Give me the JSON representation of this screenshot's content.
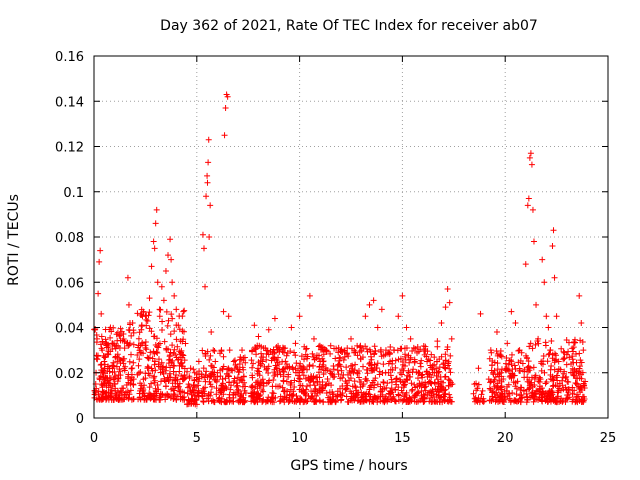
{
  "chart_data": {
    "type": "scatter",
    "title": "Day 362 of 2021, Rate Of TEC Index for receiver ab07",
    "xlabel": "GPS time / hours",
    "ylabel": "ROTI / TECUs",
    "xlim": [
      0,
      25
    ],
    "ylim": [
      0,
      0.16
    ],
    "xticks": [
      0,
      5,
      10,
      15,
      20,
      25
    ],
    "xtick_labels": [
      "0",
      "5",
      "10",
      "15",
      "20",
      "25"
    ],
    "yticks": [
      0,
      0.02,
      0.04,
      0.06,
      0.08,
      0.1,
      0.12,
      0.14,
      0.16
    ],
    "ytick_labels": [
      "0",
      "0.02",
      "0.04",
      "0.06",
      "0.08",
      "0.1",
      "0.12",
      "0.14",
      "0.16"
    ],
    "grid": true,
    "marker": "+",
    "color": "#ff0000",
    "series": [
      {
        "name": "ROTI",
        "points": [
          [
            0.05,
            0.012
          ],
          [
            0.1,
            0.02
          ],
          [
            0.15,
            0.035
          ],
          [
            0.2,
            0.055
          ],
          [
            0.25,
            0.069
          ],
          [
            0.3,
            0.074
          ],
          [
            0.35,
            0.046
          ],
          [
            0.4,
            0.03
          ],
          [
            0.45,
            0.018
          ],
          [
            0.5,
            0.025
          ],
          [
            0.6,
            0.033
          ],
          [
            0.7,
            0.028
          ],
          [
            0.8,
            0.04
          ],
          [
            0.9,
            0.022
          ],
          [
            1.0,
            0.015
          ],
          [
            1.1,
            0.037
          ],
          [
            1.2,
            0.019
          ],
          [
            1.3,
            0.012
          ],
          [
            1.5,
            0.021
          ],
          [
            1.6,
            0.033
          ],
          [
            1.65,
            0.062
          ],
          [
            1.7,
            0.05
          ],
          [
            1.75,
            0.042
          ],
          [
            1.8,
            0.028
          ],
          [
            1.9,
            0.015
          ],
          [
            2.2,
            0.026
          ],
          [
            2.3,
            0.039
          ],
          [
            2.4,
            0.047
          ],
          [
            2.5,
            0.031
          ],
          [
            2.6,
            0.022
          ],
          [
            2.7,
            0.053
          ],
          [
            2.8,
            0.067
          ],
          [
            2.9,
            0.078
          ],
          [
            2.95,
            0.075
          ],
          [
            3.0,
            0.086
          ],
          [
            3.05,
            0.092
          ],
          [
            3.1,
            0.06
          ],
          [
            3.2,
            0.045
          ],
          [
            3.3,
            0.058
          ],
          [
            3.4,
            0.052
          ],
          [
            3.5,
            0.065
          ],
          [
            3.6,
            0.072
          ],
          [
            3.7,
            0.079
          ],
          [
            3.75,
            0.07
          ],
          [
            3.8,
            0.06
          ],
          [
            3.9,
            0.054
          ],
          [
            4.0,
            0.048
          ],
          [
            4.1,
            0.041
          ],
          [
            4.2,
            0.034
          ],
          [
            4.3,
            0.028
          ],
          [
            4.4,
            0.019
          ],
          [
            4.6,
            0.015
          ],
          [
            4.7,
            0.022
          ],
          [
            4.8,
            0.012
          ],
          [
            4.9,
            0.02
          ],
          [
            5.0,
            0.017
          ],
          [
            5.1,
            0.025
          ],
          [
            5.3,
            0.081
          ],
          [
            5.35,
            0.075
          ],
          [
            5.4,
            0.058
          ],
          [
            5.45,
            0.098
          ],
          [
            5.5,
            0.107
          ],
          [
            5.52,
            0.104
          ],
          [
            5.55,
            0.113
          ],
          [
            5.58,
            0.123
          ],
          [
            5.6,
            0.08
          ],
          [
            5.65,
            0.094
          ],
          [
            5.7,
            0.038
          ],
          [
            5.8,
            0.03
          ],
          [
            5.9,
            0.025
          ],
          [
            6.0,
            0.02
          ],
          [
            6.2,
            0.03
          ],
          [
            6.3,
            0.047
          ],
          [
            6.35,
            0.125
          ],
          [
            6.4,
            0.137
          ],
          [
            6.45,
            0.143
          ],
          [
            6.5,
            0.142
          ],
          [
            6.55,
            0.045
          ],
          [
            6.6,
            0.03
          ],
          [
            6.8,
            0.025
          ],
          [
            7.0,
            0.018
          ],
          [
            7.2,
            0.03
          ],
          [
            7.8,
            0.041
          ],
          [
            8.0,
            0.036
          ],
          [
            8.2,
            0.025
          ],
          [
            8.5,
            0.039
          ],
          [
            8.8,
            0.044
          ],
          [
            9.0,
            0.03
          ],
          [
            9.3,
            0.022
          ],
          [
            9.6,
            0.04
          ],
          [
            9.8,
            0.033
          ],
          [
            10.0,
            0.045
          ],
          [
            10.3,
            0.028
          ],
          [
            10.5,
            0.054
          ],
          [
            10.7,
            0.035
          ],
          [
            11.0,
            0.025
          ],
          [
            11.3,
            0.03
          ],
          [
            11.6,
            0.019
          ],
          [
            11.9,
            0.031
          ],
          [
            12.2,
            0.027
          ],
          [
            12.5,
            0.035
          ],
          [
            12.8,
            0.02
          ],
          [
            13.2,
            0.045
          ],
          [
            13.4,
            0.05
          ],
          [
            13.6,
            0.052
          ],
          [
            13.8,
            0.04
          ],
          [
            14.0,
            0.048
          ],
          [
            14.2,
            0.03
          ],
          [
            14.4,
            0.025
          ],
          [
            14.6,
            0.03
          ],
          [
            14.8,
            0.045
          ],
          [
            15.0,
            0.054
          ],
          [
            15.2,
            0.04
          ],
          [
            15.4,
            0.035
          ],
          [
            15.6,
            0.025
          ],
          [
            15.8,
            0.02
          ],
          [
            16.0,
            0.015
          ],
          [
            16.2,
            0.025
          ],
          [
            16.4,
            0.018
          ],
          [
            16.7,
            0.034
          ],
          [
            16.9,
            0.042
          ],
          [
            17.1,
            0.049
          ],
          [
            17.2,
            0.057
          ],
          [
            17.3,
            0.051
          ],
          [
            17.4,
            0.035
          ],
          [
            18.5,
            0.015
          ],
          [
            18.7,
            0.022
          ],
          [
            18.8,
            0.046
          ],
          [
            18.9,
            0.012
          ],
          [
            19.3,
            0.03
          ],
          [
            19.6,
            0.038
          ],
          [
            19.8,
            0.02
          ],
          [
            20.1,
            0.033
          ],
          [
            20.3,
            0.047
          ],
          [
            20.5,
            0.042
          ],
          [
            20.7,
            0.03
          ],
          [
            21.0,
            0.068
          ],
          [
            21.1,
            0.094
          ],
          [
            21.15,
            0.097
          ],
          [
            21.2,
            0.115
          ],
          [
            21.25,
            0.117
          ],
          [
            21.3,
            0.112
          ],
          [
            21.35,
            0.092
          ],
          [
            21.4,
            0.078
          ],
          [
            21.5,
            0.05
          ],
          [
            21.6,
            0.035
          ],
          [
            21.8,
            0.07
          ],
          [
            21.9,
            0.06
          ],
          [
            22.0,
            0.045
          ],
          [
            22.1,
            0.04
          ],
          [
            22.2,
            0.03
          ],
          [
            22.3,
            0.076
          ],
          [
            22.35,
            0.083
          ],
          [
            22.4,
            0.062
          ],
          [
            22.5,
            0.045
          ],
          [
            22.6,
            0.025
          ],
          [
            22.8,
            0.018
          ],
          [
            23.0,
            0.028
          ],
          [
            23.2,
            0.02
          ],
          [
            23.5,
            0.015
          ],
          [
            23.6,
            0.054
          ],
          [
            23.7,
            0.042
          ],
          [
            23.8,
            0.03
          ]
        ],
        "bands": [
          {
            "x": [
              0.0,
              1.3
            ],
            "range": [
              0.008,
              0.04
            ],
            "n": 180
          },
          {
            "x": [
              1.35,
              1.95
            ],
            "range": [
              0.008,
              0.042
            ],
            "n": 60
          },
          {
            "x": [
              2.1,
              4.45
            ],
            "range": [
              0.008,
              0.048
            ],
            "n": 260
          },
          {
            "x": [
              4.5,
              5.15
            ],
            "range": [
              0.006,
              0.022
            ],
            "n": 55
          },
          {
            "x": [
              5.2,
              6.25
            ],
            "range": [
              0.007,
              0.03
            ],
            "n": 80
          },
          {
            "x": [
              6.25,
              7.4
            ],
            "range": [
              0.007,
              0.028
            ],
            "n": 100
          },
          {
            "x": [
              7.6,
              17.45
            ],
            "range": [
              0.007,
              0.032
            ],
            "n": 900
          },
          {
            "x": [
              18.45,
              19.0
            ],
            "range": [
              0.007,
              0.016
            ],
            "n": 20
          },
          {
            "x": [
              19.2,
              20.95
            ],
            "range": [
              0.007,
              0.03
            ],
            "n": 150
          },
          {
            "x": [
              21.0,
              23.9
            ],
            "range": [
              0.007,
              0.035
            ],
            "n": 280
          }
        ]
      }
    ]
  }
}
